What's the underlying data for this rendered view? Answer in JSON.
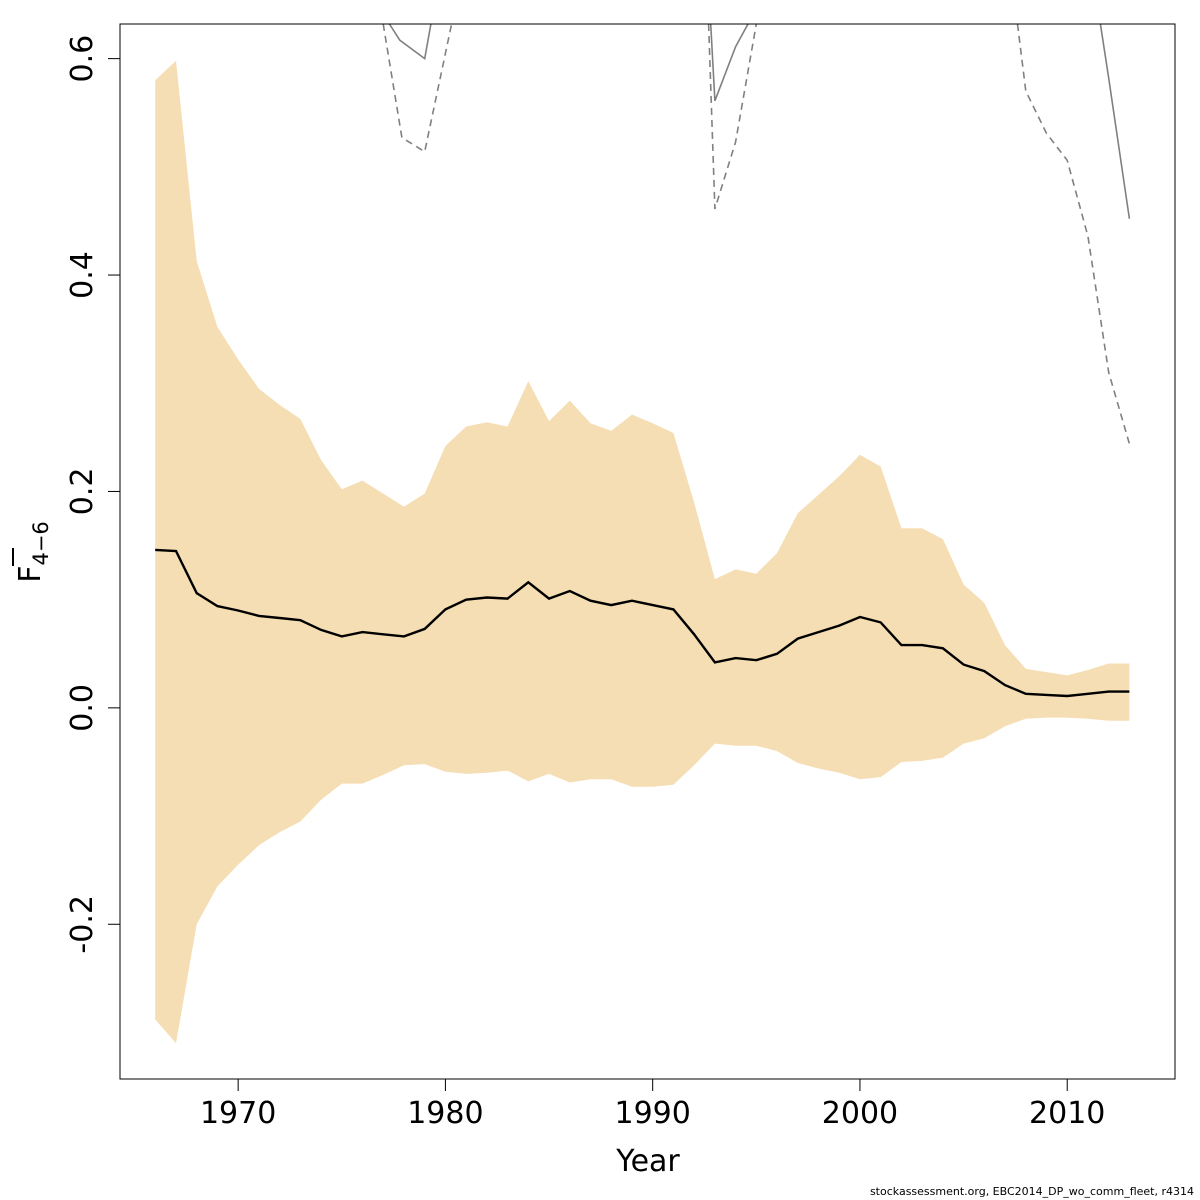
{
  "chart_data": {
    "type": "line",
    "xlabel": "Year",
    "ylabel_main": "F",
    "ylabel_sub": "4−6",
    "xlim": [
      1964.3,
      2015.2
    ],
    "ylim": [
      -0.343,
      0.632
    ],
    "x_ticks": [
      {
        "value": 1970,
        "label": "1970"
      },
      {
        "value": 1980,
        "label": "1980"
      },
      {
        "value": 1990,
        "label": "1990"
      },
      {
        "value": 2000,
        "label": "2000"
      },
      {
        "value": 2010,
        "label": "2010"
      }
    ],
    "y_ticks": [
      {
        "value": -0.2,
        "label": "-0.2"
      },
      {
        "value": 0.0,
        "label": "0.0"
      },
      {
        "value": 0.2,
        "label": "0.2"
      },
      {
        "value": 0.4,
        "label": "0.4"
      },
      {
        "value": 0.6,
        "label": "0.6"
      }
    ],
    "colors": {
      "band": "#f5deb3",
      "main_line": "#000000",
      "retro_line": "#808080"
    },
    "band": {
      "x": [
        1966,
        1967,
        1968,
        1969,
        1970,
        1971,
        1972,
        1973,
        1974,
        1975,
        1976,
        1977,
        1978,
        1979,
        1980,
        1981,
        1982,
        1983,
        1984,
        1985,
        1986,
        1987,
        1988,
        1989,
        1990,
        1991,
        1992,
        1993,
        1994,
        1995,
        1996,
        1997,
        1998,
        1999,
        2000,
        2001,
        2002,
        2003,
        2004,
        2005,
        2006,
        2007,
        2008,
        2009,
        2010,
        2011,
        2012,
        2013
      ],
      "upper": [
        0.58,
        0.598,
        0.413,
        0.352,
        0.322,
        0.295,
        0.28,
        0.267,
        0.229,
        0.202,
        0.21,
        0.198,
        0.186,
        0.198,
        0.242,
        0.26,
        0.264,
        0.26,
        0.302,
        0.265,
        0.284,
        0.263,
        0.256,
        0.271,
        0.263,
        0.254,
        0.19,
        0.119,
        0.128,
        0.124,
        0.143,
        0.18,
        0.197,
        0.214,
        0.234,
        0.223,
        0.166,
        0.166,
        0.156,
        0.114,
        0.097,
        0.058,
        0.036,
        0.033,
        0.03,
        0.035,
        0.041,
        0.041
      ],
      "lower": [
        -0.288,
        -0.31,
        -0.2,
        -0.165,
        -0.145,
        -0.127,
        -0.115,
        -0.105,
        -0.085,
        -0.07,
        -0.07,
        -0.062,
        -0.053,
        -0.052,
        -0.059,
        -0.061,
        -0.06,
        -0.058,
        -0.068,
        -0.061,
        -0.069,
        -0.066,
        -0.066,
        -0.073,
        -0.073,
        -0.071,
        -0.053,
        -0.033,
        -0.035,
        -0.035,
        -0.04,
        -0.051,
        -0.056,
        -0.06,
        -0.066,
        -0.064,
        -0.05,
        -0.049,
        -0.046,
        -0.033,
        -0.028,
        -0.017,
        -0.01,
        -0.009,
        -0.009,
        -0.01,
        -0.012,
        -0.012
      ]
    },
    "series": [
      {
        "x": [
          1966,
          1967,
          1968,
          1969,
          1970,
          1971,
          1972,
          1973,
          1974,
          1975,
          1976,
          1977,
          1978,
          1979,
          1980,
          1981,
          1982,
          1983,
          1984,
          1985,
          1986,
          1987,
          1988,
          1989,
          1990,
          1991,
          1992,
          1993,
          1994,
          1995,
          1996,
          1997,
          1998,
          1999,
          2000,
          2001,
          2002,
          2003,
          2004,
          2005,
          2006,
          2007,
          2008,
          2009,
          2010,
          2011,
          2012,
          2013
        ],
        "values": [
          0.146,
          0.145,
          0.106,
          0.094,
          0.09,
          0.085,
          0.083,
          0.081,
          0.072,
          0.066,
          0.07,
          0.068,
          0.066,
          0.073,
          0.091,
          0.1,
          0.102,
          0.101,
          0.116,
          0.101,
          0.108,
          0.099,
          0.095,
          0.099,
          0.095,
          0.091,
          0.068,
          0.042,
          0.046,
          0.044,
          0.05,
          0.064,
          0.07,
          0.076,
          0.084,
          0.079,
          0.058,
          0.058,
          0.055,
          0.04,
          0.034,
          0.021,
          0.013,
          0.012,
          0.011,
          0.013,
          0.015,
          0.015
        ],
        "style": "solid-black"
      },
      {
        "x": [
          1977.3,
          1977.8,
          1979,
          1979.3
        ],
        "values": [
          0.632,
          0.617,
          0.6,
          0.632
        ],
        "style": "solid-grey"
      },
      {
        "x": [
          1977,
          1977.9,
          1979,
          1980.3
        ],
        "values": [
          0.632,
          0.527,
          0.514,
          0.632
        ],
        "style": "dashed-grey"
      },
      {
        "x": [
          1992.8,
          1993,
          1994,
          1994.6
        ],
        "values": [
          0.632,
          0.561,
          0.611,
          0.632
        ],
        "style": "solid-grey"
      },
      {
        "x": [
          1992.7,
          1993,
          1994,
          1995
        ],
        "values": [
          0.632,
          0.461,
          0.523,
          0.632
        ],
        "style": "dashed-grey"
      },
      {
        "x": [
          2011.6,
          2012,
          2013
        ],
        "values": [
          0.632,
          0.582,
          0.452
        ],
        "style": "solid-grey"
      },
      {
        "x": [
          2007.6,
          2008,
          2009,
          2010,
          2011,
          2012,
          2013
        ],
        "values": [
          0.632,
          0.57,
          0.531,
          0.506,
          0.436,
          0.31,
          0.244
        ],
        "style": "dashed-grey"
      }
    ]
  },
  "footer": {
    "note": "stockassessment.org, EBC2014_DP_wo_comm_fleet, r4314"
  }
}
